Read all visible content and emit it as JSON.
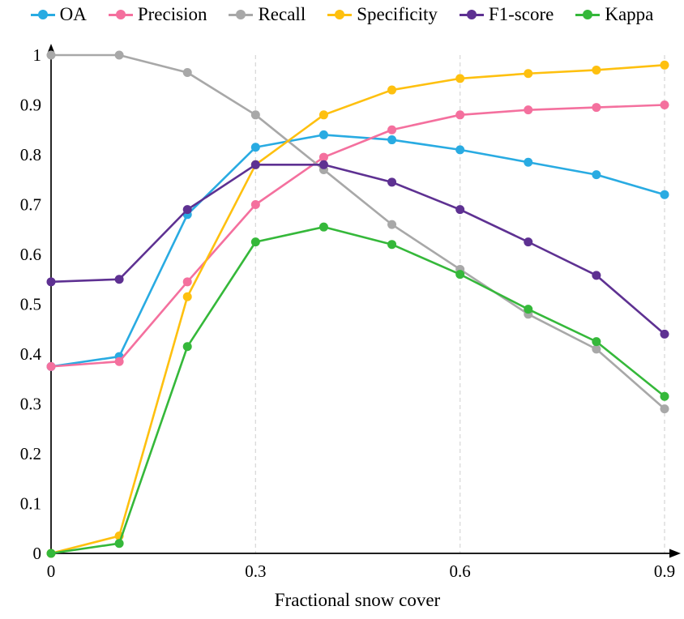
{
  "chart_data": {
    "type": "line",
    "title": "",
    "xlabel": "Fractional snow cover",
    "ylabel": "",
    "xlim": [
      0,
      0.9
    ],
    "ylim": [
      0,
      1
    ],
    "legend_position": "top",
    "grid": "vertical dashed gridlines at x = 0.3, 0.6, 0.9",
    "grid_x_values": [
      0.3,
      0.6,
      0.9
    ],
    "x": [
      0,
      0.1,
      0.2,
      0.3,
      0.4,
      0.5,
      0.6,
      0.7,
      0.8,
      0.9
    ],
    "x_ticks": [
      "0",
      "0.3",
      "0.6",
      "0.9"
    ],
    "x_tick_values": [
      0,
      0.3,
      0.6,
      0.9
    ],
    "y_ticks": [
      "0",
      "0.1",
      "0.2",
      "0.3",
      "0.4",
      "0.5",
      "0.6",
      "0.7",
      "0.8",
      "0.9",
      "1"
    ],
    "y_tick_values": [
      0,
      0.1,
      0.2,
      0.3,
      0.4,
      0.5,
      0.6,
      0.7,
      0.8,
      0.9,
      1
    ],
    "series": [
      {
        "name": "OA",
        "color": "#29abe2",
        "values": [
          0.375,
          0.395,
          0.68,
          0.815,
          0.84,
          0.83,
          0.81,
          0.785,
          0.76,
          0.72
        ]
      },
      {
        "name": "Precision",
        "color": "#f4709e",
        "values": [
          0.375,
          0.385,
          0.545,
          0.7,
          0.795,
          0.85,
          0.88,
          0.89,
          0.895,
          0.9
        ]
      },
      {
        "name": "Recall",
        "color": "#a8a8a8",
        "values": [
          1.0,
          1.0,
          0.965,
          0.88,
          0.77,
          0.66,
          0.57,
          0.48,
          0.41,
          0.29
        ]
      },
      {
        "name": "Specificity",
        "color": "#fec00f",
        "values": [
          0.0,
          0.035,
          0.515,
          0.78,
          0.88,
          0.93,
          0.953,
          0.963,
          0.97,
          0.98
        ]
      },
      {
        "name": "F1-score",
        "color": "#5e3192",
        "values": [
          0.545,
          0.55,
          0.69,
          0.78,
          0.78,
          0.745,
          0.69,
          0.625,
          0.558,
          0.44
        ]
      },
      {
        "name": "Kappa",
        "color": "#35b83a",
        "values": [
          0.0,
          0.02,
          0.415,
          0.625,
          0.655,
          0.62,
          0.56,
          0.49,
          0.425,
          0.315
        ]
      }
    ]
  }
}
